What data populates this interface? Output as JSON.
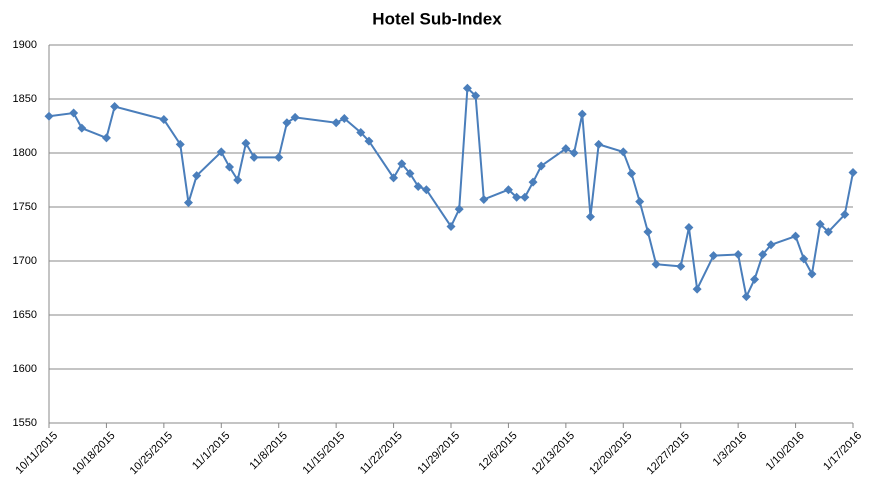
{
  "chart_data": {
    "type": "line",
    "title": "Hotel Sub-Index",
    "x": [
      "10/11/2015",
      "10/14/2015",
      "10/15/2015",
      "10/18/2015",
      "10/19/2015",
      "10/25/2015",
      "10/27/2015",
      "10/28/2015",
      "10/29/2015",
      "11/1/2015",
      "11/2/2015",
      "11/3/2015",
      "11/4/2015",
      "11/5/2015",
      "11/8/2015",
      "11/9/2015",
      "11/10/2015",
      "11/15/2015",
      "11/16/2015",
      "11/18/2015",
      "11/19/2015",
      "11/22/2015",
      "11/23/2015",
      "11/24/2015",
      "11/25/2015",
      "11/26/2015",
      "11/29/2015",
      "11/30/2015",
      "12/1/2015",
      "12/2/2015",
      "12/3/2015",
      "12/6/2015",
      "12/7/2015",
      "12/8/2015",
      "12/9/2015",
      "12/10/2015",
      "12/13/2015",
      "12/14/2015",
      "12/15/2015",
      "12/16/2015",
      "12/17/2015",
      "12/20/2015",
      "12/21/2015",
      "12/22/2015",
      "12/23/2015",
      "12/24/2015",
      "12/27/2015",
      "12/28/2015",
      "12/29/2015",
      "12/31/2015",
      "1/3/2016",
      "1/4/2016",
      "1/5/2016",
      "1/6/2016",
      "1/7/2016",
      "1/10/2016",
      "1/11/2016",
      "1/12/2016",
      "1/13/2016",
      "1/14/2016",
      "1/16/2016",
      "1/17/2016"
    ],
    "series": [
      {
        "name": "Hotel Sub-Index",
        "color": "#4a7ebb",
        "values": [
          1834,
          1837,
          1823,
          1814,
          1843,
          1831,
          1808,
          1754,
          1779,
          1801,
          1787,
          1775,
          1809,
          1796,
          1796,
          1828,
          1833,
          1828,
          1832,
          1819,
          1811,
          1777,
          1790,
          1781,
          1769,
          1766,
          1732,
          1748,
          1860,
          1853,
          1757,
          1766,
          1759,
          1759,
          1773,
          1788,
          1804,
          1800,
          1836,
          1741,
          1808,
          1801,
          1781,
          1755,
          1727,
          1697,
          1695,
          1731,
          1674,
          1705,
          1706,
          1667,
          1683,
          1706,
          1715,
          1723,
          1702,
          1688,
          1734,
          1727,
          1743,
          1782
        ]
      }
    ],
    "xlim": [
      "10/11/2015",
      "1/17/2016"
    ],
    "xticks": [
      "10/11/2015",
      "10/18/2015",
      "10/25/2015",
      "11/1/2015",
      "11/8/2015",
      "11/15/2015",
      "11/22/2015",
      "11/29/2015",
      "12/6/2015",
      "12/13/2015",
      "12/20/2015",
      "12/27/2015",
      "1/3/2016",
      "1/10/2016",
      "1/17/2016"
    ],
    "ylim": [
      1550,
      1900
    ],
    "yticks": [
      1550,
      1600,
      1650,
      1700,
      1750,
      1800,
      1850,
      1900
    ],
    "grid": true
  }
}
